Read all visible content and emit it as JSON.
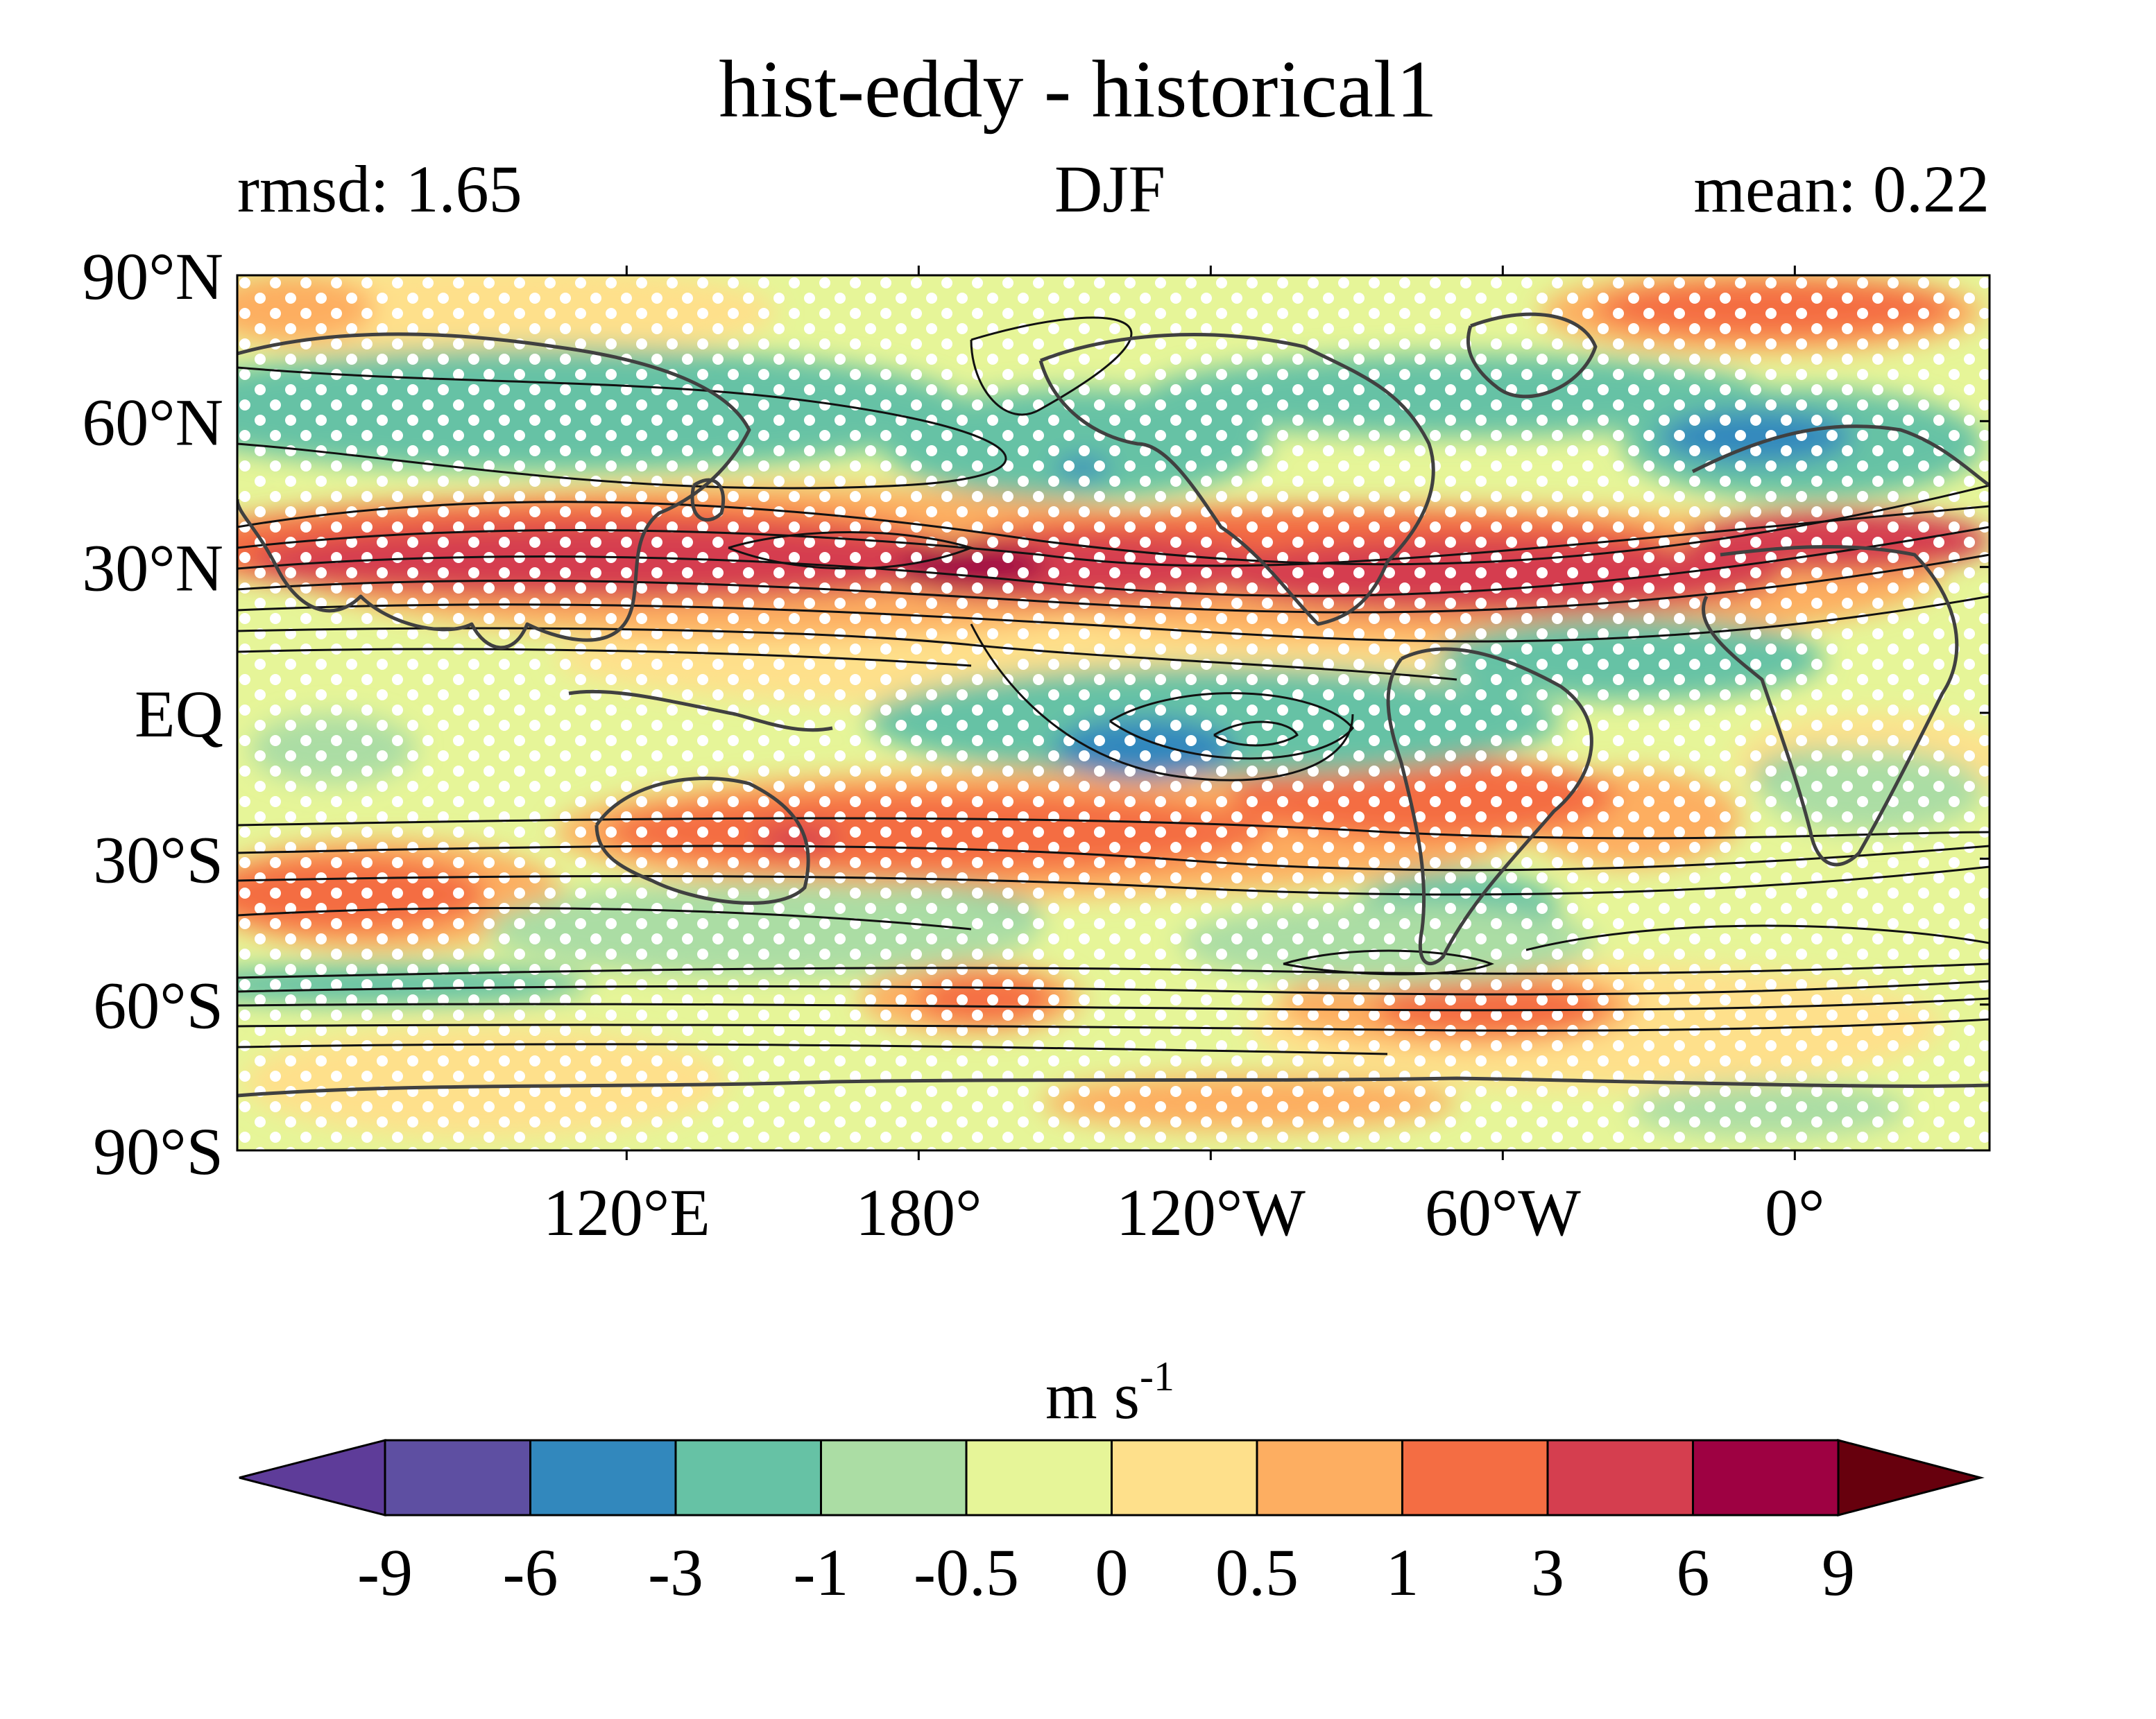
{
  "header": {
    "title": "hist-eddy - historical1",
    "left_subtitle_label": "rmsd:",
    "left_subtitle_value": "1.65",
    "center_subtitle": "DJF",
    "right_subtitle_label": "mean:",
    "right_subtitle_value": "0.22"
  },
  "map": {
    "projection": "equirectangular",
    "lon_range": [
      40,
      400
    ],
    "lat_range": [
      -90,
      90
    ],
    "y_tick_labels": [
      "90°N",
      "60°N",
      "30°N",
      "EQ",
      "30°S",
      "60°S",
      "90°S"
    ],
    "y_tick_values": [
      90,
      60,
      30,
      0,
      -30,
      -60,
      -90
    ],
    "x_tick_labels": [
      "120°E",
      "180°",
      "120°W",
      "60°W",
      "0°"
    ],
    "x_tick_values": [
      120,
      180,
      240,
      300,
      360
    ],
    "stippling": "white dots mark significant regions",
    "contours": "black climatology contours (jets)",
    "coastlines": "dark gray"
  },
  "colorbar": {
    "unit_main": "m s",
    "unit_exponent": "-1",
    "levels": [
      "-9",
      "-6",
      "-3",
      "-1",
      "-0.5",
      "0",
      "0.5",
      "1",
      "3",
      "6",
      "9"
    ],
    "colors": [
      "#5e3c99",
      "#5e4fa2",
      "#3288bd",
      "#66c2a5",
      "#abdda4",
      "#e6f598",
      "#fee08b",
      "#fdae61",
      "#f46d43",
      "#d53e4f",
      "#9e0142",
      "#67000d"
    ],
    "extend": "both"
  },
  "field_colors": {
    "base": "#e6f598",
    "pale_yellow": "#fee08b",
    "orange": "#fdae61",
    "red_orange": "#f46d43",
    "red": "#d53e4f",
    "dark_red": "#9e0142",
    "green": "#66c2a5",
    "light_green": "#abdda4",
    "blue": "#3288bd"
  }
}
